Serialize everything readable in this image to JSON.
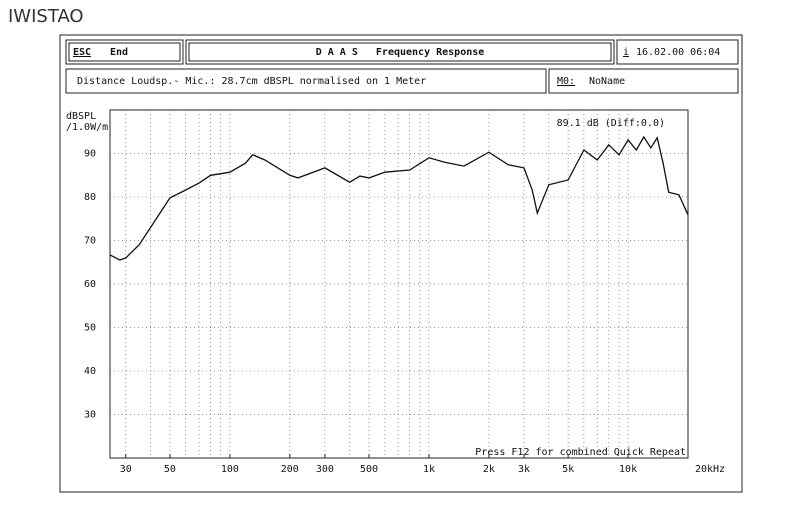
{
  "brand": "IWISTAO",
  "header": {
    "esc": "ESC",
    "end": "End",
    "title": "D A A S   Frequency Response",
    "info": "i",
    "datetime": "16.02.00 06:04",
    "description": "Distance Loudsp.- Mic.: 28.7cm dBSPL normalised on 1 Meter",
    "memory": "M0:",
    "memory_name": "NoName"
  },
  "chart_data": {
    "type": "line",
    "ylabel": [
      "dBSPL",
      "/1.0W/m"
    ],
    "x": [
      25,
      28,
      30,
      35,
      40,
      50,
      60,
      70,
      80,
      100,
      120,
      130,
      150,
      200,
      220,
      300,
      400,
      450,
      500,
      600,
      800,
      1000,
      1200,
      1500,
      2000,
      2500,
      3000,
      3300,
      3500,
      4000,
      5000,
      6000,
      7000,
      8000,
      9000,
      10000,
      11000,
      12000,
      13000,
      14000,
      15000,
      16000,
      18000,
      20000
    ],
    "values": [
      66.7,
      65.5,
      66,
      69,
      73,
      79.8,
      81.6,
      83.2,
      85,
      85.7,
      87.8,
      89.7,
      88.5,
      85,
      84.4,
      86.7,
      83.4,
      84.8,
      84.4,
      85.7,
      86.2,
      89,
      88,
      87.1,
      90.3,
      87.4,
      86.7,
      81.6,
      76.3,
      82.8,
      83.9,
      90.8,
      88.5,
      92,
      89.7,
      93.1,
      90.8,
      93.8,
      91.3,
      93.6,
      87.8,
      81.1,
      80.5,
      75.9
    ],
    "color": "#111111",
    "xscale": "log",
    "grid": true,
    "xlim": [
      25,
      20000
    ],
    "ylim": [
      20,
      100
    ],
    "xticks": [
      30,
      50,
      100,
      200,
      300,
      500,
      {
        "value": 1000,
        "label": "1k"
      },
      {
        "value": 2000,
        "label": "2k"
      },
      {
        "value": 3000,
        "label": "3k"
      },
      {
        "value": 5000,
        "label": "5k"
      },
      {
        "value": 10000,
        "label": "10k"
      },
      {
        "value": 20000,
        "label": "20kHz"
      }
    ],
    "yticks": [
      30,
      40,
      50,
      60,
      70,
      80,
      90
    ],
    "annotations": [
      "89.1 dB (Diff:0.0)",
      "Press F12 for combined Quick Repeat"
    ]
  }
}
